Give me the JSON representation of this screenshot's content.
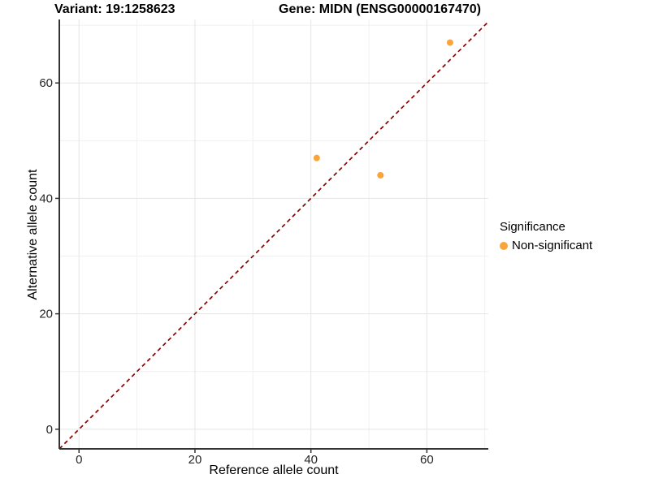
{
  "header": {
    "title_left": "Variant: 19:1258623",
    "title_right": "Gene: MIDN (ENSG00000167470)"
  },
  "axes": {
    "x_label": "Reference allele count",
    "y_label": "Alternative allele count"
  },
  "legend": {
    "title": "Significance",
    "items": [
      {
        "label": "Non-significant",
        "color": "#FAA43A"
      }
    ]
  },
  "colors": {
    "point": "#FAA43A",
    "reference_line": "#8B0000",
    "grid_major": "#E5E5E5",
    "grid_minor": "#F0F0F0",
    "axis_line": "#333333",
    "tick_text": "#262626"
  },
  "chart_data": {
    "type": "scatter",
    "title": "Variant: 19:1258623 | Gene: MIDN (ENSG00000167470)",
    "xlabel": "Reference allele count",
    "ylabel": "Alternative allele count",
    "x_ticks": [
      0,
      20,
      40,
      60
    ],
    "y_ticks": [
      0,
      20,
      40,
      60
    ],
    "x_minor_ticks": [
      10,
      30,
      50,
      70
    ],
    "y_minor_ticks": [
      10,
      30,
      50,
      70
    ],
    "xlim": [
      -3.4,
      70.6
    ],
    "ylim": [
      -3.4,
      71.0
    ],
    "grid": true,
    "legend_position": "right",
    "series": [
      {
        "name": "Non-significant",
        "color": "#FAA43A",
        "points": [
          {
            "x": 41,
            "y": 47
          },
          {
            "x": 52,
            "y": 44
          },
          {
            "x": 64,
            "y": 67
          }
        ]
      }
    ],
    "reference_line": {
      "kind": "identity",
      "equation": "y = x",
      "style": "dashed",
      "color": "#8B0000"
    }
  }
}
